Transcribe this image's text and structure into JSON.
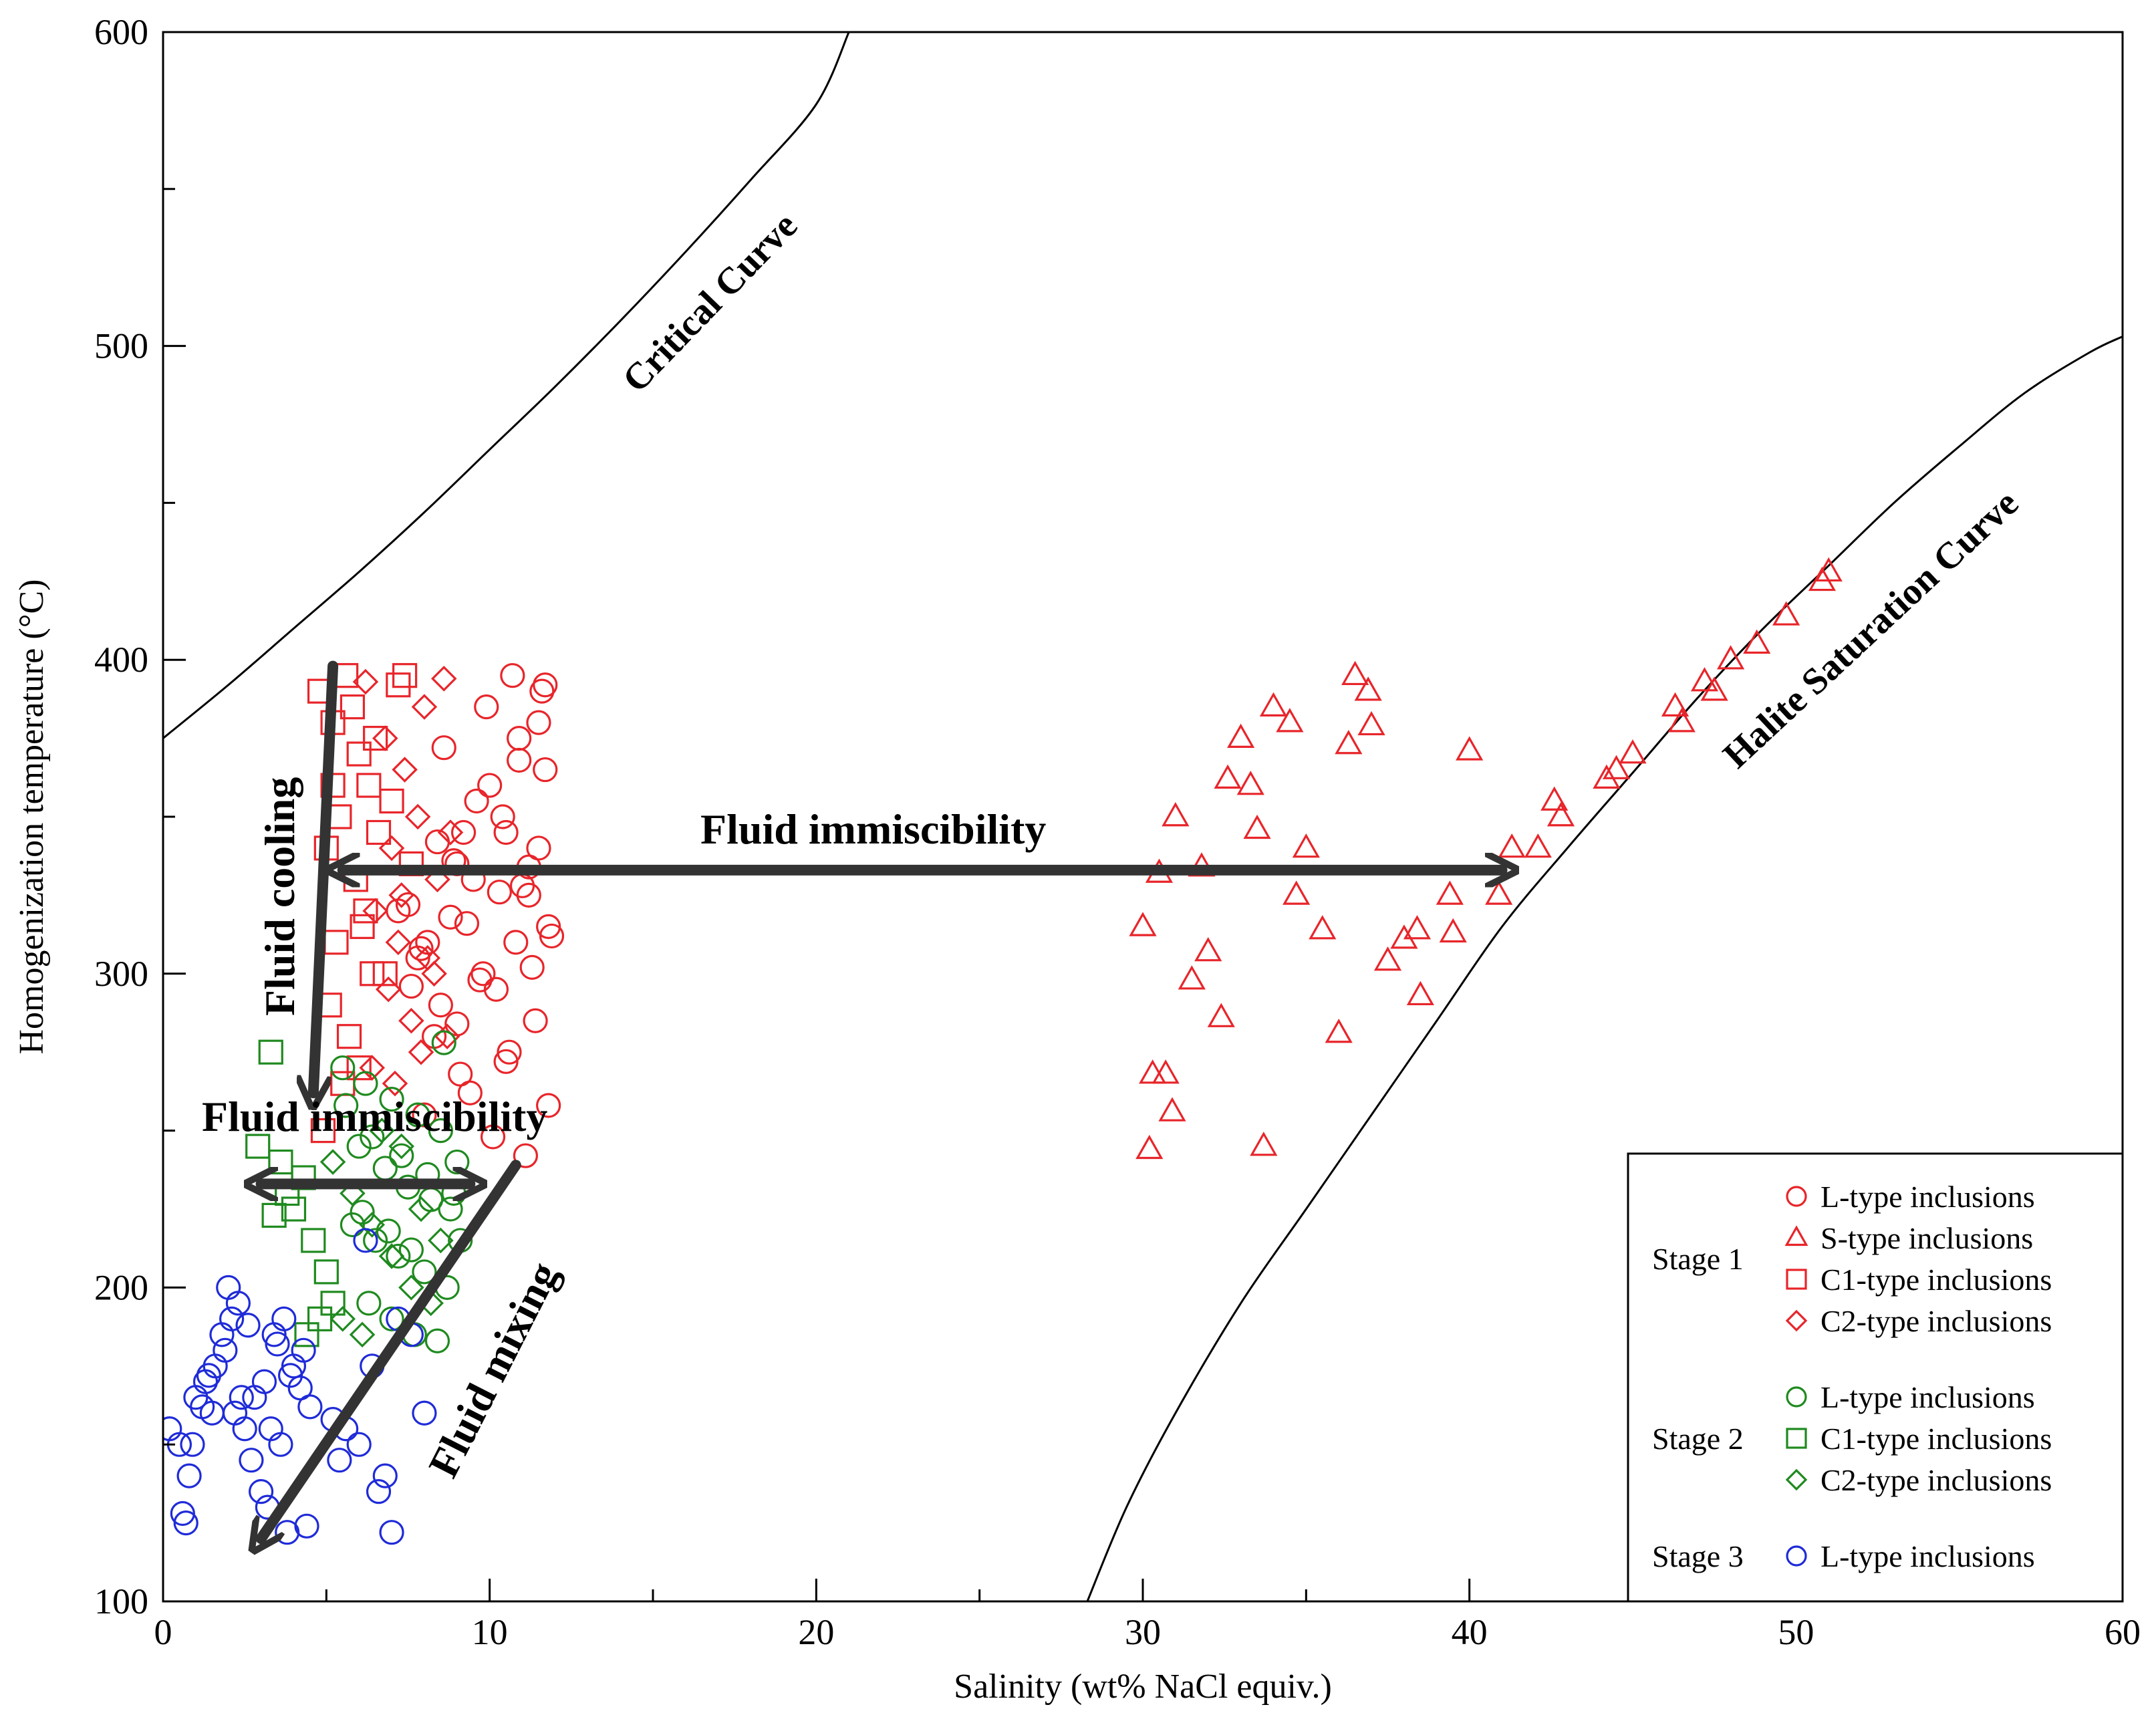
{
  "colors": {
    "stage1": "#e8252a",
    "stage2": "#1f8a1f",
    "stage3": "#1f2bd8",
    "arrow": "#333333",
    "axis": "#000000"
  },
  "chart_data": {
    "type": "scatter",
    "xlabel": "Salinity (wt% NaCl equiv.)",
    "ylabel": "Homogenization temperature (°C)",
    "xlim": [
      0,
      60
    ],
    "ylim": [
      100,
      600
    ],
    "x_ticks": [
      0,
      10,
      20,
      30,
      40,
      50,
      60
    ],
    "y_ticks": [
      100,
      200,
      300,
      400,
      500,
      600
    ],
    "critical_curve": {
      "label": "Critical Curve",
      "x": [
        0,
        2,
        4,
        6,
        8,
        10,
        12,
        14,
        16,
        18,
        20,
        21
      ],
      "y": [
        375,
        392,
        410,
        428,
        447,
        467,
        487,
        508,
        530,
        553,
        577,
        600
      ]
    },
    "halite_curve": {
      "label": "Halite Saturation Curve",
      "x": [
        28.3,
        29.5,
        31,
        33,
        35,
        37,
        39,
        41,
        43,
        45,
        47,
        49,
        51,
        53,
        55,
        57,
        59,
        60
      ],
      "y": [
        100,
        130,
        160,
        195,
        225,
        255,
        285,
        315,
        340,
        364,
        388,
        410,
        430,
        450,
        468,
        485,
        498,
        503
      ]
    },
    "annotations": {
      "fluid_cooling": "Fluid cooling",
      "fluid_immiscibility_1": "Fluid immiscibility",
      "fluid_immiscibility_2": "Fluid immiscibility",
      "fluid_mixing": "Fluid mixing"
    },
    "arrows": [
      {
        "name": "cooling-arrow",
        "from": [
          5.2,
          398
        ],
        "to": [
          4.6,
          262
        ],
        "heads": "end"
      },
      {
        "name": "immiscibility-arrow-1",
        "from": [
          5.5,
          333
        ],
        "to": [
          41,
          333
        ],
        "heads": "both"
      },
      {
        "name": "immiscibility-arrow-2",
        "from": [
          3.0,
          233
        ],
        "to": [
          9.4,
          233
        ],
        "heads": "both"
      },
      {
        "name": "mixing-arrow",
        "from": [
          10.8,
          239
        ],
        "to": [
          3.0,
          120
        ],
        "heads": "end"
      }
    ],
    "series": [
      {
        "name": "Stage 1 L-type inclusions",
        "stage": "stage1",
        "marker": "circle",
        "x": [
          7.2,
          8.1,
          9.0,
          9.8,
          10.5,
          11.2,
          11.8,
          8.5,
          9.5,
          10.8,
          11.5,
          7.8,
          8.8,
          10.2,
          11.0,
          11.9,
          9.2,
          10.0,
          10.9,
          11.6,
          8.3,
          9.7,
          11.3,
          7.5,
          8.9,
          10.4,
          11.7,
          9.1,
          10.6,
          11.4,
          8.0,
          9.4,
          10.1,
          11.1,
          11.8,
          8.6,
          9.9,
          10.7,
          11.5,
          7.9,
          9.3,
          10.3,
          11.2,
          8.4,
          9.6,
          10.9,
          11.7,
          7.6,
          9.0,
          10.5
        ],
        "y": [
          320,
          310,
          335,
          300,
          345,
          325,
          315,
          290,
          330,
          310,
          340,
          305,
          318,
          295,
          328,
          312,
          345,
          360,
          375,
          390,
          280,
          298,
          302,
          322,
          336,
          350,
          365,
          268,
          275,
          285,
          255,
          262,
          248,
          242,
          258,
          372,
          385,
          395,
          380,
          308,
          316,
          326,
          334,
          342,
          355,
          368,
          392,
          296,
          284,
          272
        ]
      },
      {
        "name": "Stage 1 S-type inclusions",
        "stage": "stage1",
        "marker": "triangle",
        "x": [
          30.0,
          30.5,
          31.0,
          31.5,
          32.0,
          32.6,
          33.0,
          33.5,
          34.0,
          34.5,
          35.0,
          35.5,
          36.0,
          36.5,
          37.0,
          37.5,
          38.0,
          38.5,
          39.5,
          40.0,
          30.3,
          30.9,
          31.8,
          32.4,
          33.3,
          34.7,
          36.9,
          38.4,
          39.4,
          40.9,
          41.3,
          42.1,
          42.6,
          44.2,
          45.0,
          46.3,
          47.2,
          48.0,
          48.8,
          49.7,
          50.8,
          51.0,
          42.8,
          44.5,
          46.5,
          47.5,
          30.2,
          30.7,
          33.7,
          36.3
        ],
        "y": [
          315,
          332,
          350,
          298,
          307,
          362,
          375,
          346,
          385,
          380,
          340,
          314,
          281,
          395,
          379,
          304,
          311,
          293,
          313,
          371,
          268,
          256,
          334,
          286,
          360,
          325,
          390,
          314,
          325,
          325,
          340,
          340,
          355,
          362,
          370,
          385,
          393,
          400,
          405,
          414,
          425,
          428,
          350,
          365,
          380,
          390,
          244,
          268,
          245,
          373
        ]
      },
      {
        "name": "Stage 1 C1-type inclusions",
        "stage": "stage1",
        "marker": "square",
        "x": [
          4.8,
          5.2,
          5.6,
          6.0,
          6.3,
          7.4,
          5.0,
          5.4,
          5.9,
          6.6,
          7.0,
          5.3,
          6.2,
          6.8,
          7.6,
          5.1,
          5.7,
          6.4,
          5.5,
          6.0,
          4.9,
          5.8,
          6.5,
          7.2,
          5.2,
          6.1
        ],
        "y": [
          390,
          380,
          395,
          370,
          360,
          395,
          340,
          350,
          330,
          345,
          355,
          310,
          320,
          300,
          335,
          290,
          280,
          300,
          265,
          270,
          250,
          385,
          375,
          392,
          360,
          315
        ]
      },
      {
        "name": "Stage 1 C2-type inclusions",
        "stage": "stage1",
        "marker": "diamond",
        "x": [
          6.2,
          6.8,
          7.4,
          8.0,
          8.6,
          7.0,
          7.8,
          8.4,
          6.5,
          7.2,
          8.1,
          8.8,
          6.9,
          7.6,
          8.3,
          6.4,
          7.1,
          7.9,
          8.7,
          7.3
        ],
        "y": [
          393,
          375,
          365,
          385,
          394,
          340,
          350,
          330,
          320,
          310,
          305,
          345,
          295,
          285,
          300,
          270,
          265,
          275,
          280,
          325
        ]
      },
      {
        "name": "Stage 2 L-type inclusions",
        "stage": "stage2",
        "marker": "circle",
        "x": [
          5.5,
          6.2,
          7.0,
          7.8,
          8.5,
          9.0,
          6.0,
          6.8,
          7.5,
          8.2,
          8.8,
          5.8,
          6.5,
          7.2,
          8.0,
          8.7,
          6.3,
          7.0,
          7.7,
          8.4,
          9.1,
          5.6,
          6.4,
          7.3,
          8.1,
          8.9,
          6.1,
          6.9,
          7.6,
          8.6
        ],
        "y": [
          270,
          265,
          260,
          255,
          250,
          240,
          245,
          238,
          232,
          228,
          225,
          220,
          215,
          210,
          205,
          200,
          195,
          190,
          185,
          183,
          215,
          258,
          248,
          242,
          236,
          230,
          224,
          218,
          212,
          278
        ]
      },
      {
        "name": "Stage 2 C1-type inclusions",
        "stage": "stage2",
        "marker": "square",
        "x": [
          3.3,
          2.9,
          3.6,
          4.0,
          4.6,
          5.0,
          4.3,
          3.8,
          4.8,
          5.2,
          4.4,
          3.4
        ],
        "y": [
          275,
          245,
          240,
          225,
          215,
          205,
          235,
          230,
          190,
          195,
          185,
          223
        ]
      },
      {
        "name": "Stage 2 C2-type inclusions",
        "stage": "stage2",
        "marker": "diamond",
        "x": [
          5.2,
          5.8,
          6.4,
          7.0,
          7.6,
          8.2,
          5.5,
          6.1,
          6.7,
          7.3,
          7.9,
          8.5
        ],
        "y": [
          240,
          230,
          220,
          210,
          200,
          195,
          190,
          185,
          250,
          245,
          225,
          215
        ]
      },
      {
        "name": "Stage 3 L-type inclusions",
        "stage": "stage3",
        "marker": "circle",
        "x": [
          0.2,
          0.5,
          0.8,
          1.0,
          1.3,
          1.6,
          1.9,
          2.2,
          2.5,
          2.8,
          3.1,
          3.4,
          3.7,
          4.0,
          4.3,
          0.6,
          0.9,
          1.2,
          1.5,
          1.8,
          2.1,
          2.4,
          2.7,
          3.0,
          3.3,
          3.6,
          3.9,
          4.2,
          4.5,
          2.0,
          2.6,
          3.2,
          3.8,
          5.2,
          5.6,
          6.0,
          6.4,
          6.8,
          7.2,
          7.6,
          8.0,
          5.4,
          6.2,
          7.0,
          0.7,
          1.4,
          2.3,
          3.5,
          4.4,
          6.6
        ],
        "y": [
          155,
          150,
          140,
          165,
          170,
          175,
          180,
          160,
          155,
          165,
          170,
          185,
          190,
          175,
          180,
          128,
          150,
          162,
          160,
          185,
          190,
          165,
          145,
          135,
          155,
          150,
          172,
          168,
          162,
          200,
          188,
          130,
          122,
          158,
          155,
          150,
          175,
          140,
          190,
          185,
          160,
          145,
          215,
          122,
          125,
          172,
          195,
          182,
          124,
          135
        ]
      }
    ],
    "legend": {
      "groups": [
        {
          "label": "Stage 1",
          "entries": [
            {
              "marker": "circle",
              "text": "L-type inclusions"
            },
            {
              "marker": "triangle",
              "text": "S-type inclusions"
            },
            {
              "marker": "square",
              "text": "C1-type inclusions"
            },
            {
              "marker": "diamond",
              "text": "C2-type inclusions"
            }
          ]
        },
        {
          "label": "Stage 2",
          "entries": [
            {
              "marker": "circle",
              "text": "L-type inclusions"
            },
            {
              "marker": "square",
              "text": "C1-type inclusions"
            },
            {
              "marker": "diamond",
              "text": "C2-type inclusions"
            }
          ]
        },
        {
          "label": "Stage 3",
          "entries": [
            {
              "marker": "circle",
              "text": "L-type inclusions"
            }
          ]
        }
      ]
    }
  }
}
